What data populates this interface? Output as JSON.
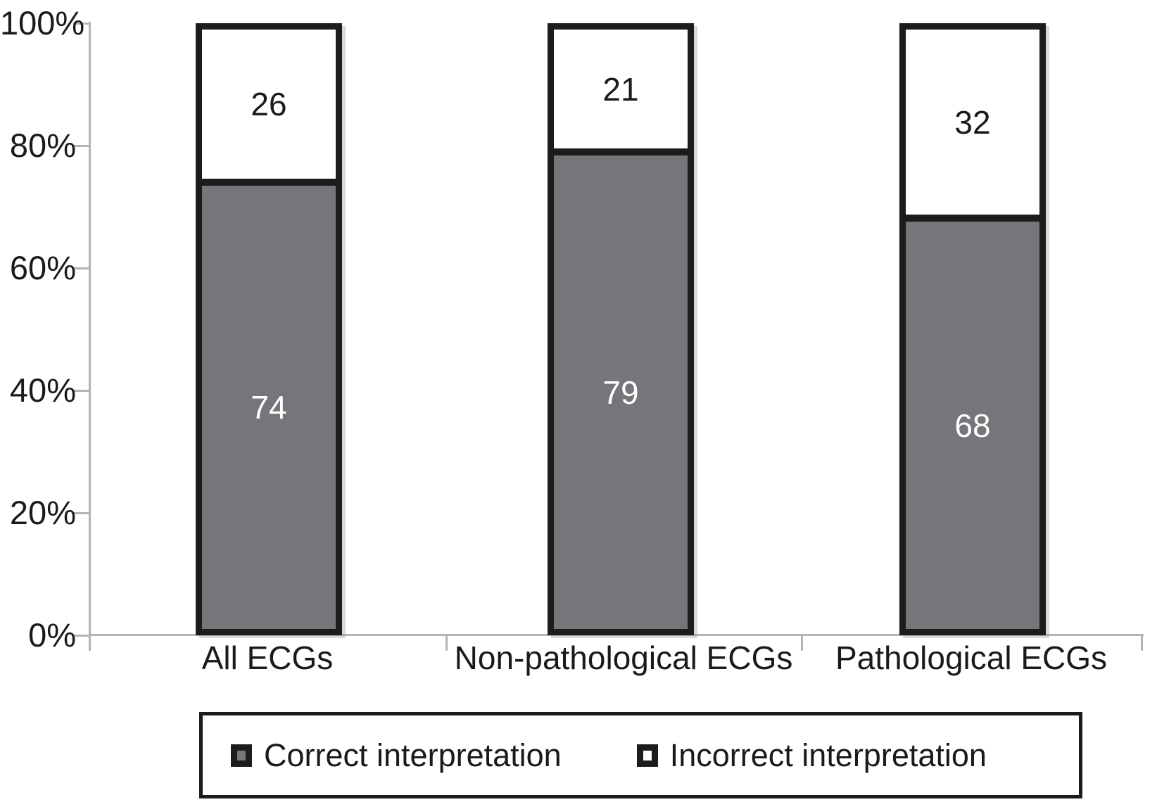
{
  "chart_data": {
    "type": "bar",
    "stacked": true,
    "title": "",
    "categories": [
      "All ECGs",
      "Non-pathological ECGs",
      "Pathological ECGs"
    ],
    "series": [
      {
        "name": "Correct interpretation",
        "values": [
          74,
          79,
          68
        ]
      },
      {
        "name": "Incorrect interpretation",
        "values": [
          26,
          21,
          32
        ]
      }
    ],
    "stack_order_top_to_bottom": [
      "Incorrect interpretation",
      "Correct interpretation"
    ],
    "y_ticks": [
      "100%",
      "80%",
      "60%",
      "40%",
      "20%",
      "0%"
    ],
    "ylim": [
      0,
      100
    ],
    "grid": false,
    "legend_position": "bottom",
    "data_labels_shown": true
  },
  "colors": {
    "correct_fill": "#75757a",
    "incorrect_fill": "#ffffff",
    "bar_border": "#1d1b1c",
    "axis": "#b4b4b7",
    "text": "#1a1a1a",
    "correct_label_text": "#ffffff",
    "incorrect_label_text": "#1a1a1a",
    "background": "#ffffff"
  },
  "legend": {
    "items": [
      {
        "label": "Correct interpretation",
        "swatch_fill": "#75757a"
      },
      {
        "label": "Incorrect interpretation",
        "swatch_fill": "#ffffff"
      }
    ]
  }
}
